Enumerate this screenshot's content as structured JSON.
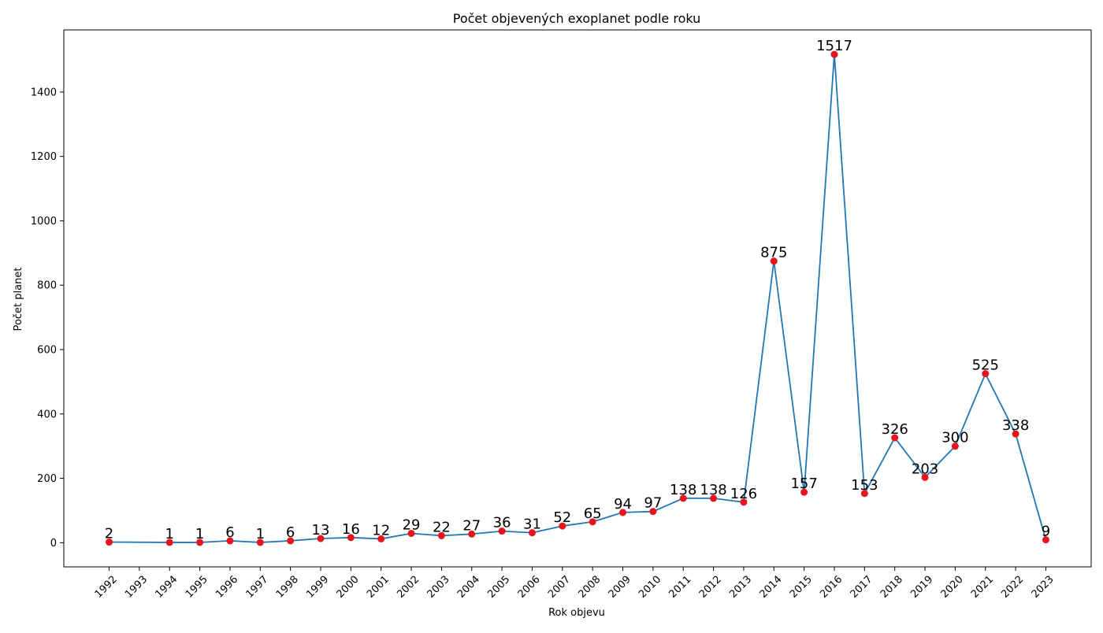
{
  "chart_data": {
    "type": "line",
    "title": "Počet objevených exoplanet podle roku",
    "xlabel": "Rok objevu",
    "ylabel": "Počet planet",
    "x_ticks": [
      "1992",
      "1993",
      "1994",
      "1995",
      "1996",
      "1997",
      "1998",
      "1999",
      "2000",
      "2001",
      "2002",
      "2003",
      "2004",
      "2005",
      "2006",
      "2007",
      "2008",
      "2009",
      "2010",
      "2011",
      "2012",
      "2013",
      "2014",
      "2015",
      "2016",
      "2017",
      "2018",
      "2019",
      "2020",
      "2021",
      "2022",
      "2023"
    ],
    "y_ticks": [
      0,
      200,
      400,
      600,
      800,
      1000,
      1200,
      1400
    ],
    "ylim": [
      -75,
      1593
    ],
    "xlim": [
      1990.5,
      2024.5
    ],
    "grid": false,
    "series": [
      {
        "name": "Počet planet",
        "line_color": "#1f77b4",
        "marker_color": "#e8141c",
        "points": [
          {
            "x": 1992,
            "y": 2
          },
          {
            "x": 1994,
            "y": 1
          },
          {
            "x": 1995,
            "y": 1
          },
          {
            "x": 1996,
            "y": 6
          },
          {
            "x": 1997,
            "y": 1
          },
          {
            "x": 1998,
            "y": 6
          },
          {
            "x": 1999,
            "y": 13
          },
          {
            "x": 2000,
            "y": 16
          },
          {
            "x": 2001,
            "y": 12
          },
          {
            "x": 2002,
            "y": 29
          },
          {
            "x": 2003,
            "y": 22
          },
          {
            "x": 2004,
            "y": 27
          },
          {
            "x": 2005,
            "y": 36
          },
          {
            "x": 2006,
            "y": 31
          },
          {
            "x": 2007,
            "y": 52
          },
          {
            "x": 2008,
            "y": 65
          },
          {
            "x": 2009,
            "y": 94
          },
          {
            "x": 2010,
            "y": 97
          },
          {
            "x": 2011,
            "y": 138
          },
          {
            "x": 2012,
            "y": 138
          },
          {
            "x": 2013,
            "y": 126
          },
          {
            "x": 2014,
            "y": 875
          },
          {
            "x": 2015,
            "y": 157
          },
          {
            "x": 2016,
            "y": 1517
          },
          {
            "x": 2017,
            "y": 153
          },
          {
            "x": 2018,
            "y": 326
          },
          {
            "x": 2019,
            "y": 203
          },
          {
            "x": 2020,
            "y": 300
          },
          {
            "x": 2021,
            "y": 525
          },
          {
            "x": 2022,
            "y": 338
          },
          {
            "x": 2023,
            "y": 9
          }
        ]
      }
    ]
  }
}
